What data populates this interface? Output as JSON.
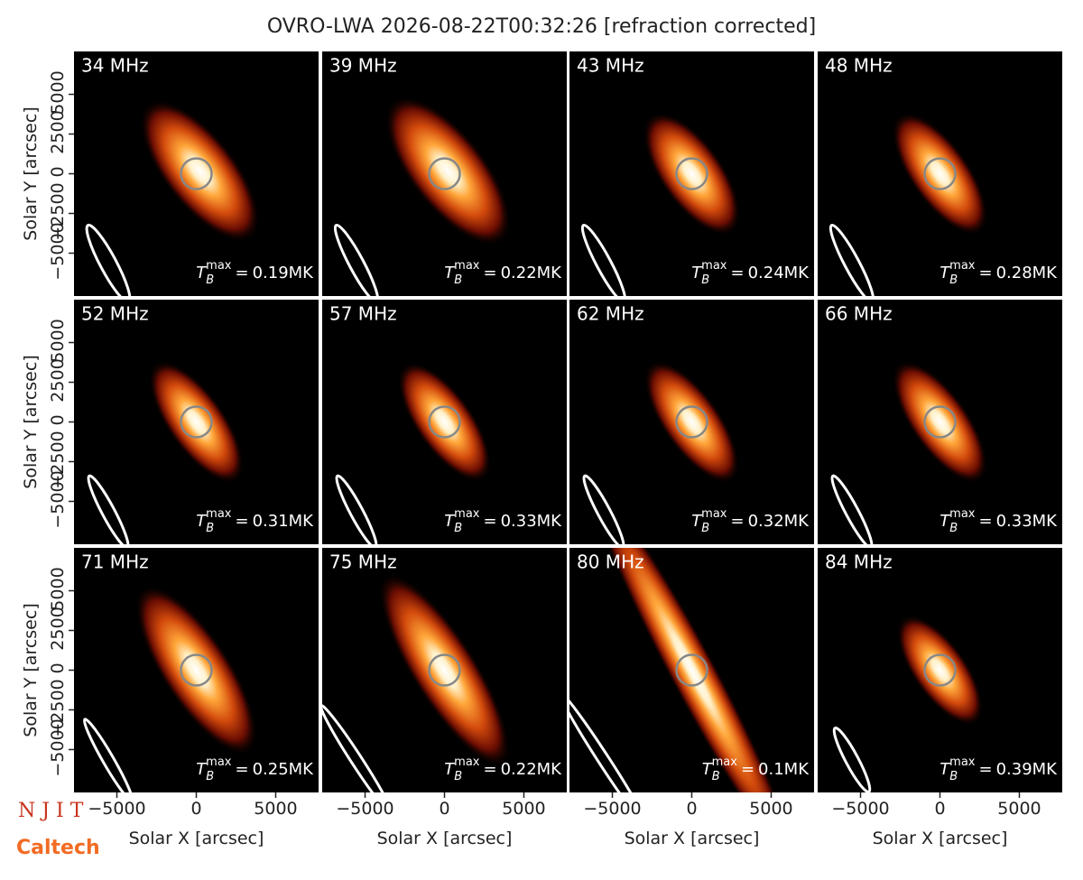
{
  "chart_data": {
    "type": "image-grid",
    "title": "OVRO-LWA 2026-08-22T00:32:26 [refraction corrected]",
    "categories": [
      "34 MHz",
      "39 MHz",
      "43 MHz",
      "48 MHz",
      "52 MHz",
      "57 MHz",
      "62 MHz",
      "66 MHz",
      "71 MHz",
      "75 MHz",
      "80 MHz",
      "84 MHz"
    ],
    "values": [
      0.19,
      0.22,
      0.24,
      0.28,
      0.31,
      0.33,
      0.32,
      0.33,
      0.25,
      0.22,
      0.1,
      0.39
    ],
    "value_labels": [
      "0.19MK",
      "0.22MK",
      "0.24MK",
      "0.28MK",
      "0.31MK",
      "0.33MK",
      "0.32MK",
      "0.33MK",
      "0.25MK",
      "0.22MK",
      "0.1MK",
      "0.39MK"
    ],
    "value_symbol": {
      "main": "T",
      "sub": "B",
      "sup": "max",
      "eq": "="
    },
    "xlabel": "Solar X [arcsec]",
    "ylabel": "Solar Y [arcsec]",
    "xlim": [
      -7700,
      7700
    ],
    "ylim": [
      -7700,
      7700
    ],
    "xticks": [
      {
        "value": -5000,
        "label": "−5000"
      },
      0,
      5000
    ],
    "yticks": [
      {
        "value": -5000,
        "label": "−5000"
      },
      {
        "value": -2500,
        "label": "−2500"
      },
      0,
      2500,
      5000
    ],
    "grid": false
  },
  "logos": {
    "top": "N J I T",
    "bottom": "Caltech"
  }
}
